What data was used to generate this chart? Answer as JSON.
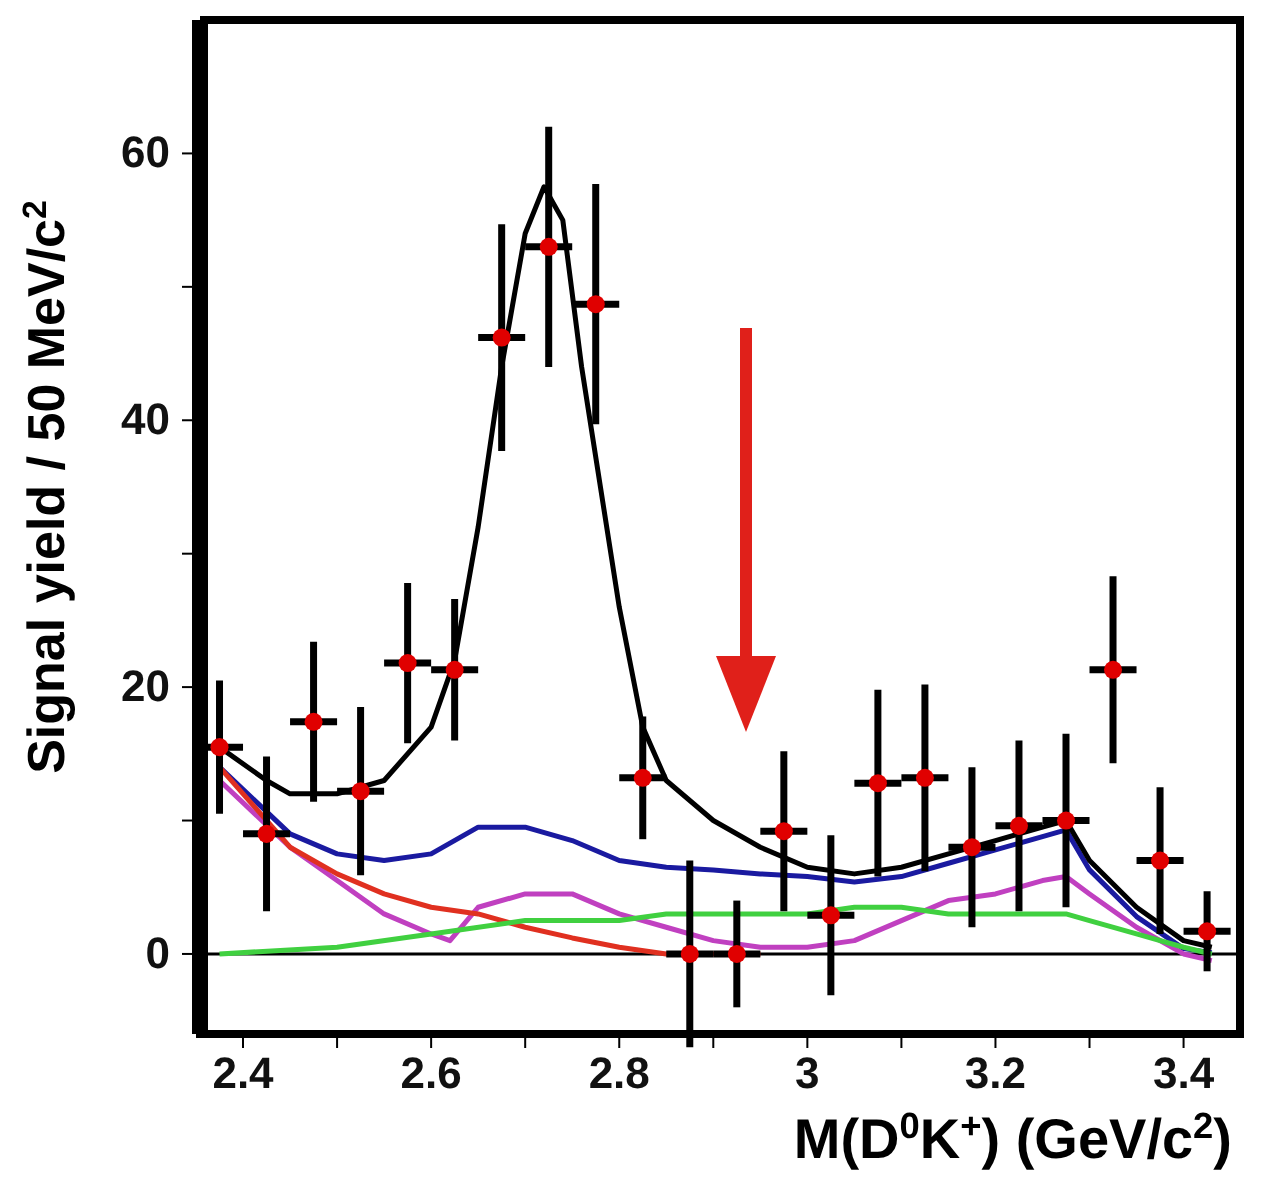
{
  "chart_data": {
    "type": "scatter",
    "xlabel": "M(D$^{0}$K$^{+}$) (GeV/c$^{2}$)",
    "ylabel": "Signal yield / 50 MeV/c$^{2}$",
    "xlim": [
      2.35,
      3.46
    ],
    "xticks": [
      2.4,
      {
        "value": 2.5,
        "label": null
      },
      2.6,
      {
        "value": 2.7,
        "label": null
      },
      2.8,
      {
        "value": 2.9,
        "label": null
      },
      3,
      {
        "value": 3.1,
        "label": null
      },
      3.2,
      {
        "value": 3.3,
        "label": null
      },
      3.4
    ],
    "ylim": [
      -6,
      70
    ],
    "yticks": [
      0,
      {
        "value": 10,
        "label": null
      },
      20,
      {
        "value": 30,
        "label": null
      },
      40,
      {
        "value": 50,
        "label": null
      },
      60
    ],
    "grid": false,
    "legend": false,
    "ref_lines": [
      {
        "axis": "y",
        "value": 0,
        "color": "#000000"
      }
    ],
    "series": [
      {
        "type": "line",
        "color": "#1a1aa0",
        "marker": "none",
        "x": [
          2.375,
          2.45,
          2.5,
          2.55,
          2.6,
          2.65,
          2.7,
          2.75,
          2.8,
          2.85,
          2.9,
          2.95,
          3.0,
          3.05,
          3.1,
          3.15,
          3.2,
          3.25,
          3.275,
          3.3,
          3.35,
          3.4,
          3.43
        ],
        "values": [
          14,
          9,
          7.5,
          7,
          7.5,
          9.5,
          9.5,
          8.5,
          7,
          6.5,
          6.3,
          6,
          5.8,
          5.4,
          5.8,
          6.8,
          7.8,
          8.8,
          9.3,
          6.3,
          2.8,
          0.4,
          0.1
        ]
      },
      {
        "type": "line",
        "color": "#c040c0",
        "marker": "none",
        "x": [
          2.375,
          2.45,
          2.5,
          2.55,
          2.6,
          2.62,
          2.65,
          2.7,
          2.75,
          2.8,
          2.85,
          2.9,
          2.95,
          3.0,
          3.05,
          3.1,
          3.15,
          3.2,
          3.25,
          3.275,
          3.3,
          3.35,
          3.4,
          3.43
        ],
        "values": [
          13,
          8,
          5.5,
          3,
          1.5,
          1,
          3.5,
          4.5,
          4.5,
          3,
          2,
          1,
          0.5,
          0.5,
          1,
          2.5,
          4,
          4.5,
          5.5,
          5.8,
          4.5,
          2,
          0,
          -0.5
        ]
      },
      {
        "type": "line",
        "color": "#e03020",
        "marker": "none",
        "x": [
          2.375,
          2.45,
          2.5,
          2.55,
          2.6,
          2.65,
          2.7,
          2.75,
          2.8,
          2.85,
          2.95
        ],
        "values": [
          14,
          8,
          6,
          4.5,
          3.5,
          3,
          2,
          1.2,
          0.5,
          0,
          0
        ]
      },
      {
        "type": "line",
        "color": "#40d040",
        "marker": "none",
        "x": [
          2.375,
          2.5,
          2.6,
          2.7,
          2.8,
          2.85,
          2.9,
          3.0,
          3.05,
          3.1,
          3.15,
          3.2,
          3.25,
          3.275,
          3.3,
          3.35,
          3.4,
          3.43
        ],
        "values": [
          0,
          0.5,
          1.5,
          2.5,
          2.5,
          3,
          3,
          3,
          3.5,
          3.5,
          3,
          3,
          3,
          3,
          2.5,
          1.5,
          0.5,
          0
        ]
      },
      {
        "type": "line",
        "color": "#000000",
        "marker": "none",
        "x": [
          2.375,
          2.425,
          2.45,
          2.5,
          2.55,
          2.6,
          2.625,
          2.65,
          2.675,
          2.7,
          2.72,
          2.74,
          2.76,
          2.8,
          2.825,
          2.85,
          2.9,
          2.95,
          3.0,
          3.05,
          3.1,
          3.15,
          3.2,
          3.25,
          3.275,
          3.3,
          3.35,
          3.4,
          3.43
        ],
        "values": [
          15.5,
          13,
          12,
          12,
          13,
          17,
          22,
          32,
          44,
          54,
          57.5,
          55,
          44,
          26,
          17,
          13,
          10,
          8,
          6.5,
          6,
          6.5,
          7.5,
          8.5,
          9.5,
          10,
          7,
          3.5,
          1,
          0.5
        ]
      },
      {
        "color": "#e00000",
        "marker": "circle",
        "x": [
          2.375,
          2.425,
          2.475,
          2.525,
          2.575,
          2.625,
          2.675,
          2.725,
          2.775,
          2.825,
          2.875,
          2.925,
          2.975,
          3.025,
          3.075,
          3.125,
          3.175,
          3.225,
          3.275,
          3.325,
          3.375,
          3.425
        ],
        "values": [
          15.5,
          9,
          17.4,
          12.2,
          21.8,
          21.3,
          46.2,
          53,
          48.7,
          13.2,
          0,
          0,
          9.2,
          2.9,
          12.8,
          13.2,
          8,
          9.6,
          10,
          21.3,
          7,
          1.7
        ],
        "errors": [
          5,
          5.8,
          6,
          6.3,
          6,
          5.3,
          8.5,
          9,
          9,
          4.6,
          7,
          4,
          6,
          6,
          7,
          7,
          6,
          6.4,
          6.5,
          7,
          5.5,
          3
        ],
        "xerrors": [
          0.025,
          0.025,
          0.025,
          0.025,
          0.025,
          0.025,
          0.025,
          0.025,
          0.025,
          0.025,
          0.025,
          0.025,
          0.025,
          0.025,
          0.025,
          0.025,
          0.025,
          0.025,
          0.025,
          0.025,
          0.025,
          0.025
        ]
      }
    ]
  }
}
